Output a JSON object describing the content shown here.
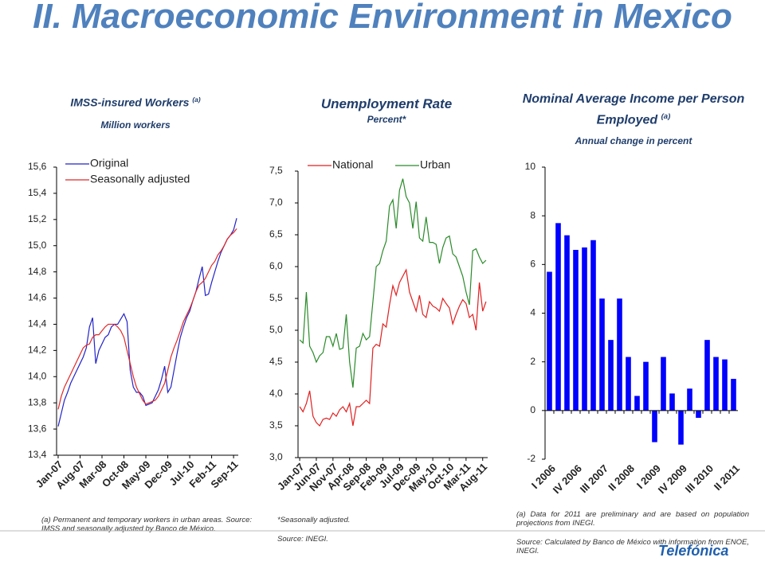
{
  "slide_title": "II. Macroeconomic Environment in Mexico",
  "logo": "Telefónica",
  "chart_data": [
    {
      "type": "line",
      "title": "IMSS-insured Workers",
      "title_note": "(a)",
      "subtitle": "Million workers",
      "categories": [
        "Jan-07",
        null,
        null,
        null,
        null,
        null,
        null,
        "Aug-07",
        null,
        null,
        null,
        null,
        null,
        null,
        "Mar-08",
        null,
        null,
        null,
        null,
        null,
        null,
        "Oct-08",
        null,
        null,
        null,
        null,
        null,
        null,
        "May-09",
        null,
        null,
        null,
        null,
        null,
        null,
        "Dec-09",
        null,
        null,
        null,
        null,
        null,
        null,
        "Jul-10",
        null,
        null,
        null,
        null,
        null,
        null,
        "Feb-11",
        null,
        null,
        null,
        null,
        null,
        null,
        "Sep-11",
        null
      ],
      "series": [
        {
          "name": "Original",
          "color": "#2323c8",
          "values": [
            13.62,
            13.72,
            13.82,
            13.88,
            13.95,
            14.0,
            14.05,
            14.1,
            14.15,
            14.22,
            14.38,
            14.45,
            14.1,
            14.2,
            14.25,
            14.3,
            14.32,
            14.38,
            14.4,
            14.4,
            14.44,
            14.48,
            14.42,
            14.05,
            13.92,
            13.88,
            13.88,
            13.85,
            13.78,
            13.79,
            13.8,
            13.85,
            13.9,
            13.98,
            14.08,
            13.88,
            13.92,
            14.05,
            14.18,
            14.3,
            14.38,
            14.45,
            14.5,
            14.58,
            14.65,
            14.75,
            14.84,
            14.62,
            14.63,
            14.72,
            14.8,
            14.88,
            14.95,
            15.0,
            15.05,
            15.08,
            15.12,
            15.21
          ]
        },
        {
          "name": "Seasonally adjusted",
          "color": "#e02828",
          "values": [
            13.75,
            13.85,
            13.92,
            13.97,
            14.02,
            14.07,
            14.12,
            14.17,
            14.22,
            14.24,
            14.25,
            14.3,
            14.32,
            14.32,
            14.35,
            14.38,
            14.4,
            14.4,
            14.4,
            14.38,
            14.35,
            14.3,
            14.2,
            14.1,
            14.0,
            13.92,
            13.87,
            13.82,
            13.79,
            13.8,
            13.81,
            13.82,
            13.85,
            13.9,
            13.95,
            14.05,
            14.15,
            14.22,
            14.28,
            14.35,
            14.42,
            14.47,
            14.52,
            14.58,
            14.65,
            14.7,
            14.72,
            14.75,
            14.8,
            14.85,
            14.88,
            14.93,
            14.96,
            15.0,
            15.05,
            15.08,
            15.1,
            15.13
          ]
        }
      ],
      "ylim": [
        13.4,
        15.6
      ],
      "yticks": [
        {
          "value": 13.4,
          "label": "13,4"
        },
        {
          "value": 13.6,
          "label": "13,6"
        },
        {
          "value": 13.8,
          "label": "13,8"
        },
        {
          "value": 14.0,
          "label": "14,0"
        },
        {
          "value": 14.2,
          "label": "14,2"
        },
        {
          "value": 14.4,
          "label": "14,4"
        },
        {
          "value": 14.6,
          "label": "14,6"
        },
        {
          "value": 14.8,
          "label": "14,8"
        },
        {
          "value": 15.0,
          "label": "15,0"
        },
        {
          "value": 15.2,
          "label": "15,2"
        },
        {
          "value": 15.4,
          "label": "15,4"
        },
        {
          "value": 15.6,
          "label": "15,6"
        }
      ],
      "legend": "upper left",
      "notes": [
        "(a) Permanent and temporary workers in urban areas. Source: IMSS and seasonally adjusted by Banco de México."
      ]
    },
    {
      "type": "line",
      "title": "Unemployment Rate",
      "subtitle": "Percent*",
      "categories": [
        "Jan-07",
        null,
        null,
        null,
        null,
        "Jun-07",
        null,
        null,
        null,
        null,
        "Nov-07",
        null,
        null,
        null,
        null,
        "Apr-08",
        null,
        null,
        null,
        null,
        "Sep-08",
        null,
        null,
        null,
        null,
        "Feb-09",
        null,
        null,
        null,
        null,
        "Jul-09",
        null,
        null,
        null,
        null,
        "Dec-09",
        null,
        null,
        null,
        null,
        "May-10",
        null,
        null,
        null,
        null,
        "Oct-10",
        null,
        null,
        null,
        null,
        "Mar-11",
        null,
        null,
        null,
        null,
        "Aug-11",
        null
      ],
      "series": [
        {
          "name": "National",
          "color": "#e02020",
          "values": [
            3.8,
            3.72,
            3.85,
            4.05,
            3.65,
            3.55,
            3.5,
            3.6,
            3.62,
            3.6,
            3.7,
            3.65,
            3.75,
            3.8,
            3.72,
            3.85,
            3.5,
            3.8,
            3.8,
            3.85,
            3.9,
            3.85,
            4.72,
            4.78,
            4.75,
            5.1,
            5.05,
            5.4,
            5.7,
            5.55,
            5.75,
            5.85,
            5.95,
            5.6,
            5.45,
            5.3,
            5.55,
            5.25,
            5.2,
            5.45,
            5.38,
            5.35,
            5.3,
            5.5,
            5.42,
            5.35,
            5.1,
            5.25,
            5.38,
            5.48,
            5.42,
            5.2,
            5.25,
            5.0,
            5.75,
            5.3,
            5.45
          ]
        },
        {
          "name": "Urban",
          "color": "#2a8a2a",
          "values": [
            4.85,
            4.8,
            5.6,
            4.75,
            4.65,
            4.5,
            4.6,
            4.65,
            4.9,
            4.9,
            4.75,
            4.95,
            4.7,
            4.72,
            5.25,
            4.5,
            4.1,
            4.72,
            4.75,
            4.95,
            4.85,
            4.9,
            5.45,
            6.0,
            6.05,
            6.25,
            6.4,
            6.95,
            7.05,
            6.6,
            7.2,
            7.38,
            7.1,
            7.0,
            6.6,
            7.02,
            6.45,
            6.4,
            6.78,
            6.38,
            6.38,
            6.35,
            6.05,
            6.3,
            6.45,
            6.48,
            6.2,
            6.15,
            6.0,
            5.85,
            5.6,
            5.4,
            6.25,
            6.28,
            6.15,
            6.05,
            6.1
          ]
        }
      ],
      "ylim": [
        3.0,
        7.5
      ],
      "yticks": [
        {
          "value": 3.0,
          "label": "3,0"
        },
        {
          "value": 3.5,
          "label": "3,5"
        },
        {
          "value": 4.0,
          "label": "4,0"
        },
        {
          "value": 4.5,
          "label": "4,5"
        },
        {
          "value": 5.0,
          "label": "5,0"
        },
        {
          "value": 5.5,
          "label": "5,5"
        },
        {
          "value": 6.0,
          "label": "6,0"
        },
        {
          "value": 6.5,
          "label": "6,5"
        },
        {
          "value": 7.0,
          "label": "7,0"
        },
        {
          "value": 7.5,
          "label": "7,5"
        }
      ],
      "legend": "upper center",
      "notes": [
        "*Seasonally adjusted.",
        "Source: INEGI."
      ]
    },
    {
      "type": "bar",
      "title": "Nominal Average Income per Person Employed",
      "title_note": "(a)",
      "subtitle": "Annual change in percent",
      "categories": [
        "I 2006",
        null,
        null,
        "IV 2006",
        null,
        null,
        "III 2007",
        null,
        null,
        "II 2008",
        null,
        null,
        "I 2009",
        null,
        null,
        "IV 2009",
        null,
        null,
        "III 2010",
        null,
        null,
        "II 2011"
      ],
      "values": [
        5.7,
        7.7,
        7.2,
        6.6,
        6.7,
        7.0,
        4.6,
        2.9,
        4.6,
        2.2,
        0.6,
        2.0,
        -1.3,
        2.2,
        0.7,
        -1.4,
        0.9,
        -0.3,
        2.9,
        2.2,
        2.1,
        1.3
      ],
      "color": "#0000ff",
      "ylim": [
        -2,
        10
      ],
      "yticks": [
        -2,
        0,
        2,
        4,
        6,
        8,
        10
      ],
      "notes": [
        "(a) Data for 2011 are preliminary and are based on population projections from INEGI.",
        "Source: Calculated by Banco de México with information from ENOE, INEGI."
      ]
    }
  ]
}
